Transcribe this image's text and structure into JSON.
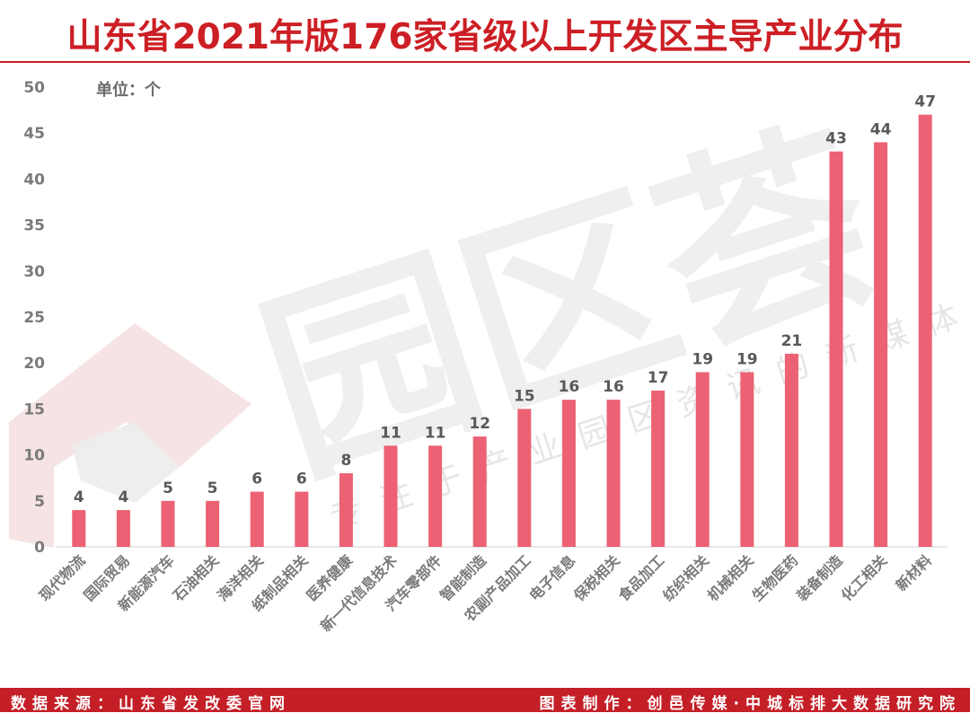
{
  "title": "山东省2021年版176家省级以上开发区主导产业分布",
  "unit_label": "单位：个",
  "footer": {
    "source": "数据来源：山东省发改委官网",
    "maker": "图表制作：创邑传媒·中城标排大数据研究院"
  },
  "watermark": {
    "mark": "园区荟",
    "slogan": "专注于产业园区资讯的新媒体"
  },
  "colors": {
    "bar": "#ec6173",
    "title": "#cc1f25",
    "footer_bg": "#c41f27",
    "axis_text": "#7a7a7a",
    "label_text": "#595959"
  },
  "chart_data": {
    "type": "bar",
    "title": "山东省2021年版176家省级以上开发区主导产业分布",
    "xlabel": "",
    "ylabel": "单位：个",
    "ylim": [
      0,
      50
    ],
    "yticks": [
      0,
      5,
      10,
      15,
      20,
      25,
      30,
      35,
      40,
      45,
      50
    ],
    "grid": false,
    "categories": [
      "现代物流",
      "国际贸易",
      "新能源汽车",
      "石油相关",
      "海洋相关",
      "纸制品相关",
      "医养健康",
      "新一代信息技术",
      "汽车零部件",
      "智能制造",
      "农副产品加工",
      "电子信息",
      "保税相关",
      "食品加工",
      "纺织相关",
      "机械相关",
      "生物医药",
      "装备制造",
      "化工相关",
      "新材料"
    ],
    "values": [
      4,
      4,
      5,
      5,
      6,
      6,
      8,
      11,
      11,
      12,
      15,
      16,
      16,
      17,
      19,
      19,
      21,
      43,
      44,
      47
    ]
  }
}
